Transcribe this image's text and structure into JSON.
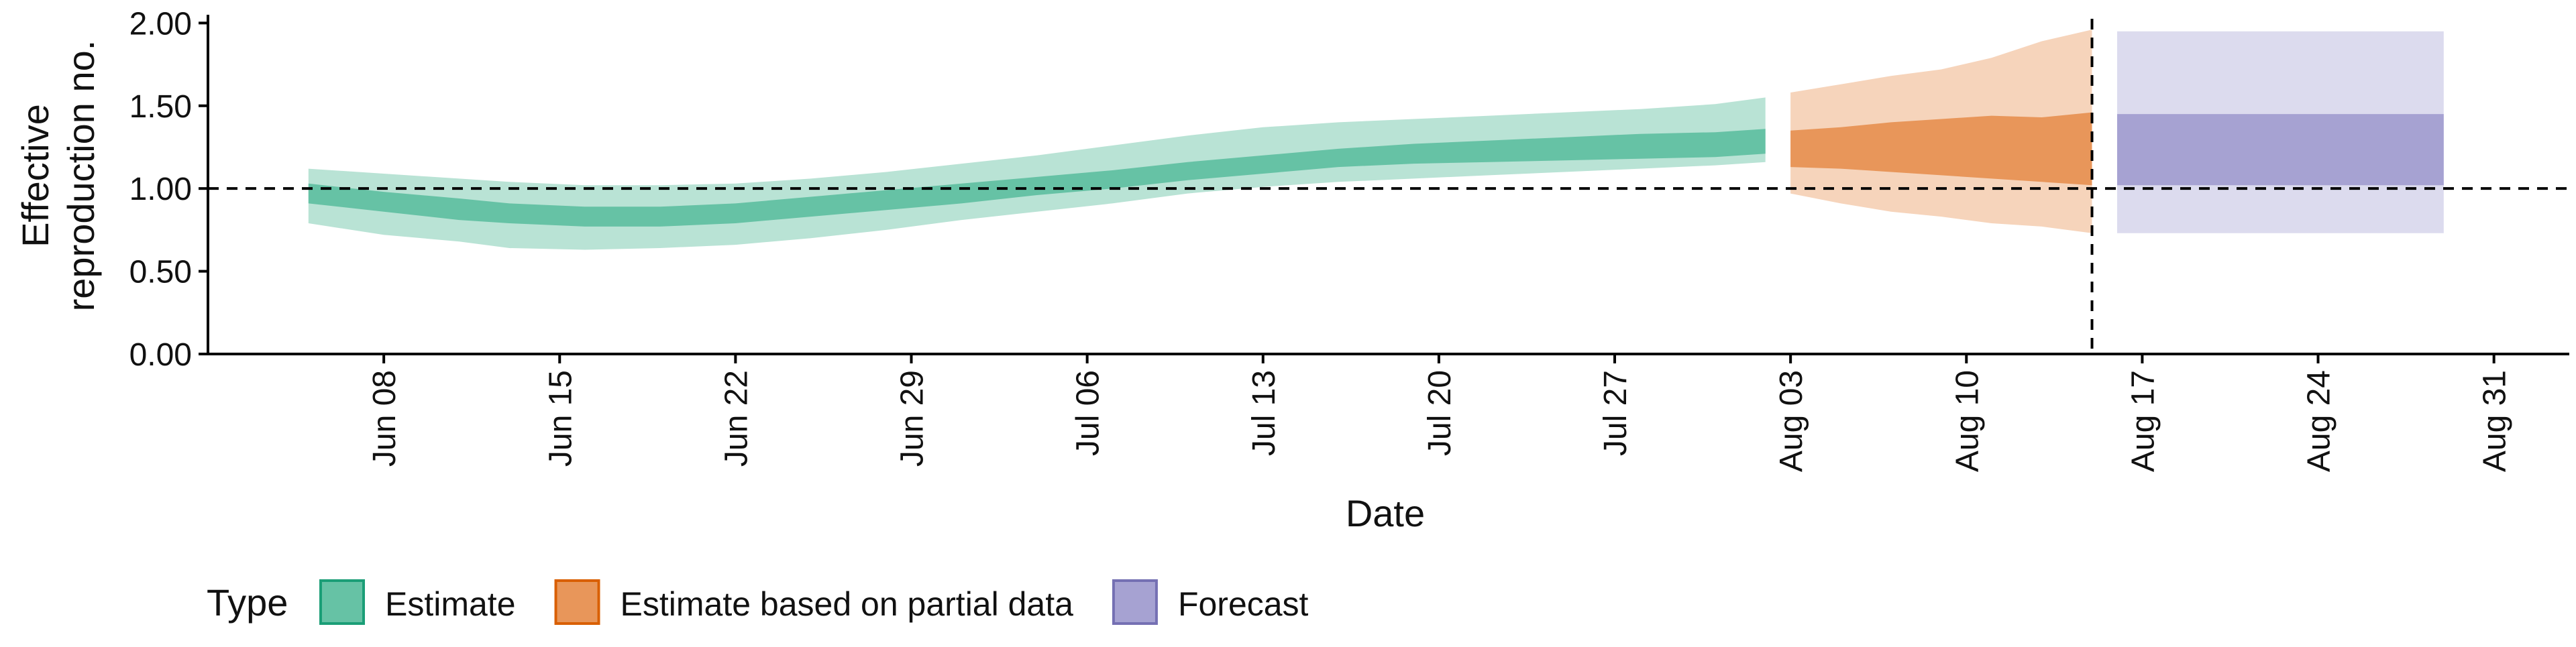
{
  "chart_data": {
    "type": "area",
    "title": "",
    "xlabel": "Date",
    "ylabel_lines": [
      "Effective",
      "reproduction no."
    ],
    "ylim": [
      0,
      2.05
    ],
    "y_ticks": [
      0.0,
      0.5,
      1.0,
      1.5,
      2.0
    ],
    "y_tick_labels": [
      "0.00",
      "0.50",
      "1.00",
      "1.50",
      "2.00"
    ],
    "x_range": [
      "2020-06-01",
      "2020-09-03"
    ],
    "x_ticks": [
      "2020-06-08",
      "2020-06-15",
      "2020-06-22",
      "2020-06-29",
      "2020-07-06",
      "2020-07-13",
      "2020-07-20",
      "2020-07-27",
      "2020-08-03",
      "2020-08-10",
      "2020-08-17",
      "2020-08-24",
      "2020-08-31"
    ],
    "x_tick_labels": [
      "Jun 08",
      "Jun 15",
      "Jun 22",
      "Jun 29",
      "Jul 06",
      "Jul 13",
      "Jul 20",
      "Jul 27",
      "Aug 03",
      "Aug 10",
      "Aug 17",
      "Aug 24",
      "Aug 31"
    ],
    "reference_line_y": 1.0,
    "vertical_line_x": "2020-08-15",
    "legend": {
      "title": "Type",
      "position": "bottom",
      "entries": [
        {
          "label": "Estimate",
          "fill": "#66c2a5",
          "stroke": "#1b9e77"
        },
        {
          "label": "Estimate based on partial data",
          "fill": "#e8965a",
          "stroke": "#d95f02"
        },
        {
          "label": "Forecast",
          "fill": "#a6a2d2",
          "stroke": "#7570b3"
        }
      ]
    },
    "series": [
      {
        "name": "Estimate",
        "inner_color": "#66c2a5",
        "outer_color": "#b9e3d5",
        "x": [
          "2020-06-05",
          "2020-06-08",
          "2020-06-11",
          "2020-06-13",
          "2020-06-16",
          "2020-06-19",
          "2020-06-22",
          "2020-06-25",
          "2020-06-28",
          "2020-07-01",
          "2020-07-04",
          "2020-07-07",
          "2020-07-10",
          "2020-07-13",
          "2020-07-16",
          "2020-07-19",
          "2020-07-22",
          "2020-07-25",
          "2020-07-28",
          "2020-07-31",
          "2020-08-02"
        ],
        "lower_90": [
          0.79,
          0.72,
          0.68,
          0.64,
          0.63,
          0.64,
          0.66,
          0.7,
          0.75,
          0.81,
          0.86,
          0.91,
          0.97,
          1.01,
          1.04,
          1.06,
          1.08,
          1.1,
          1.12,
          1.14,
          1.16
        ],
        "upper_90": [
          1.12,
          1.09,
          1.06,
          1.04,
          1.02,
          1.02,
          1.03,
          1.06,
          1.1,
          1.15,
          1.2,
          1.26,
          1.32,
          1.37,
          1.4,
          1.42,
          1.44,
          1.46,
          1.48,
          1.51,
          1.55
        ],
        "lower_50": [
          0.91,
          0.86,
          0.81,
          0.79,
          0.77,
          0.77,
          0.79,
          0.83,
          0.87,
          0.91,
          0.96,
          1.0,
          1.05,
          1.09,
          1.13,
          1.15,
          1.16,
          1.17,
          1.18,
          1.19,
          1.21
        ],
        "upper_50": [
          1.03,
          0.98,
          0.94,
          0.91,
          0.89,
          0.89,
          0.91,
          0.95,
          0.99,
          1.03,
          1.07,
          1.11,
          1.16,
          1.2,
          1.24,
          1.27,
          1.29,
          1.31,
          1.33,
          1.34,
          1.36
        ]
      },
      {
        "name": "Estimate based on partial data",
        "inner_color": "#e8965a",
        "outer_color": "#f6d4bb",
        "x": [
          "2020-08-03",
          "2020-08-05",
          "2020-08-07",
          "2020-08-09",
          "2020-08-11",
          "2020-08-13",
          "2020-08-15"
        ],
        "lower_90": [
          0.97,
          0.91,
          0.86,
          0.83,
          0.79,
          0.77,
          0.73
        ],
        "upper_90": [
          1.58,
          1.63,
          1.68,
          1.72,
          1.79,
          1.89,
          1.96
        ],
        "lower_50": [
          1.13,
          1.12,
          1.1,
          1.08,
          1.06,
          1.04,
          1.02
        ],
        "upper_50": [
          1.35,
          1.37,
          1.4,
          1.42,
          1.44,
          1.43,
          1.46
        ]
      },
      {
        "name": "Forecast",
        "inner_color": "#a6a2d2",
        "outer_color": "#dcdbee",
        "x": [
          "2020-08-16",
          "2020-08-29"
        ],
        "lower_90": [
          0.73,
          0.73
        ],
        "upper_90": [
          1.95,
          1.95
        ],
        "lower_50": [
          1.02,
          1.02
        ],
        "upper_50": [
          1.45,
          1.45
        ]
      }
    ]
  }
}
